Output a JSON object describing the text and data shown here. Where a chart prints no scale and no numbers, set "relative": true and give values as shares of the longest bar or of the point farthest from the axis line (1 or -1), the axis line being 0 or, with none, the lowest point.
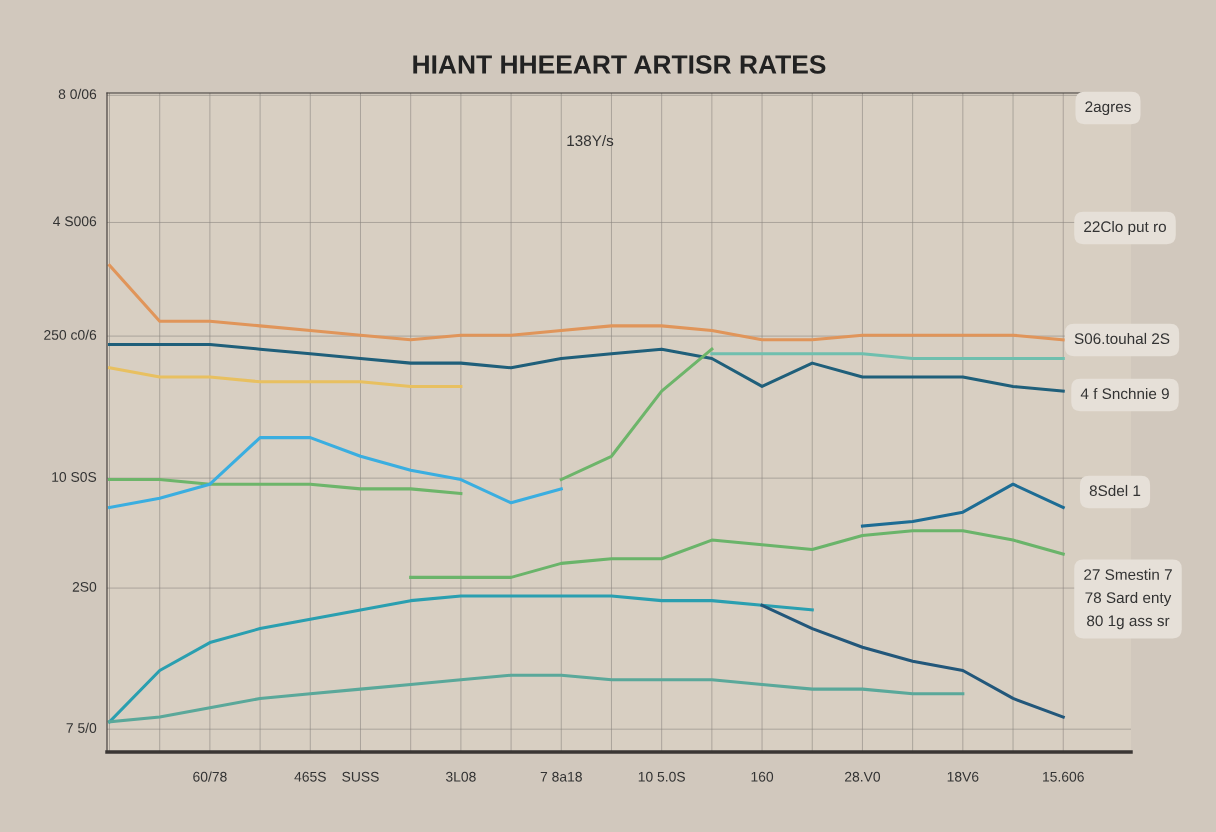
{
  "chart_data": {
    "type": "line",
    "title": "HIANT HHEEART ARTISR RATES",
    "categories": [
      null,
      null,
      "60/78",
      null,
      "465S",
      "SUSS",
      null,
      "3L08",
      null,
      "7 8a18",
      null,
      "10 5.0S",
      null,
      "160",
      null,
      "28.V0",
      null,
      "18V6",
      null,
      "15.606"
    ],
    "relative": true,
    "grid": true,
    "marker": "none",
    "line_style": "solid",
    "annotations": [
      "7 5/0",
      "2S0",
      "10 S0S",
      "250 c0/6",
      "4 S006",
      "8 0/06",
      "138Y/s",
      "2agres",
      "22Clo put ro",
      "S06.touhal 2S",
      "4 f Snchnie 9",
      "8Sdel 1",
      "27 Smestin 7\n78 Sard enty\n80 1g ass sr"
    ],
    "series": [
      {
        "color": "#e0955a",
        "values": [
          1.0,
          0.88,
          0.88,
          0.87,
          0.86,
          0.85,
          0.84,
          0.85,
          0.85,
          0.86,
          0.87,
          0.87,
          0.86,
          0.84,
          0.84,
          0.85,
          0.85,
          0.85,
          0.85,
          0.84
        ]
      },
      {
        "color": "#1f5f7a",
        "values": [
          0.83,
          0.83,
          0.83,
          0.82,
          0.81,
          0.8,
          0.79,
          0.79,
          0.78,
          0.8,
          0.81,
          0.82,
          0.8,
          0.74,
          0.79,
          0.76,
          0.76,
          0.76,
          0.74,
          0.73
        ]
      },
      {
        "color": "#e8c060",
        "values": [
          0.78,
          0.76,
          0.76,
          0.75,
          0.75,
          0.75,
          0.74,
          0.74,
          null,
          null,
          null,
          null,
          null,
          null,
          null,
          null,
          null,
          null,
          null,
          null
        ]
      },
      {
        "color": "#6fbfae",
        "values": [
          null,
          null,
          null,
          null,
          null,
          null,
          null,
          null,
          null,
          null,
          null,
          null,
          0.81,
          0.81,
          0.81,
          0.81,
          0.8,
          0.8,
          0.8,
          0.8
        ]
      },
      {
        "color": "#6db56a",
        "values": [
          0.54,
          0.54,
          0.53,
          0.53,
          0.53,
          0.52,
          0.52,
          0.51,
          null,
          0.54,
          0.59,
          0.73,
          0.82,
          null,
          null,
          null,
          null,
          null,
          null,
          null
        ]
      },
      {
        "color": "#3aaee0",
        "values": [
          0.48,
          0.5,
          0.53,
          0.63,
          0.63,
          0.59,
          0.56,
          0.54,
          0.49,
          0.52,
          null,
          null,
          null,
          null,
          null,
          null,
          null,
          null,
          null,
          null
        ]
      },
      {
        "color": "#6ab46a",
        "values": [
          null,
          null,
          null,
          null,
          null,
          null,
          0.33,
          0.33,
          0.33,
          0.36,
          0.37,
          0.37,
          0.41,
          0.4,
          0.39,
          0.42,
          0.43,
          0.43,
          0.41,
          0.38
        ]
      },
      {
        "color": "#1d6c94",
        "values": [
          null,
          null,
          null,
          null,
          null,
          null,
          null,
          null,
          null,
          null,
          null,
          null,
          null,
          null,
          null,
          0.44,
          0.45,
          0.47,
          0.53,
          0.48
        ]
      },
      {
        "color": "#2a9fb0",
        "values": [
          0.02,
          0.13,
          0.19,
          0.22,
          0.24,
          0.26,
          0.28,
          0.29,
          0.29,
          0.29,
          0.29,
          0.28,
          0.28,
          0.27,
          0.26,
          null,
          null,
          null,
          null,
          null
        ]
      },
      {
        "color": "#22577a",
        "values": [
          null,
          null,
          null,
          null,
          null,
          null,
          null,
          null,
          null,
          null,
          null,
          null,
          null,
          0.27,
          0.22,
          0.18,
          0.15,
          0.13,
          0.07,
          0.03
        ]
      },
      {
        "color": "#5aa89a",
        "values": [
          0.02,
          0.03,
          0.05,
          0.07,
          0.08,
          0.09,
          0.1,
          0.11,
          0.12,
          0.12,
          0.11,
          0.11,
          0.11,
          0.1,
          0.09,
          0.09,
          0.08,
          0.08,
          null,
          null
        ]
      }
    ]
  }
}
